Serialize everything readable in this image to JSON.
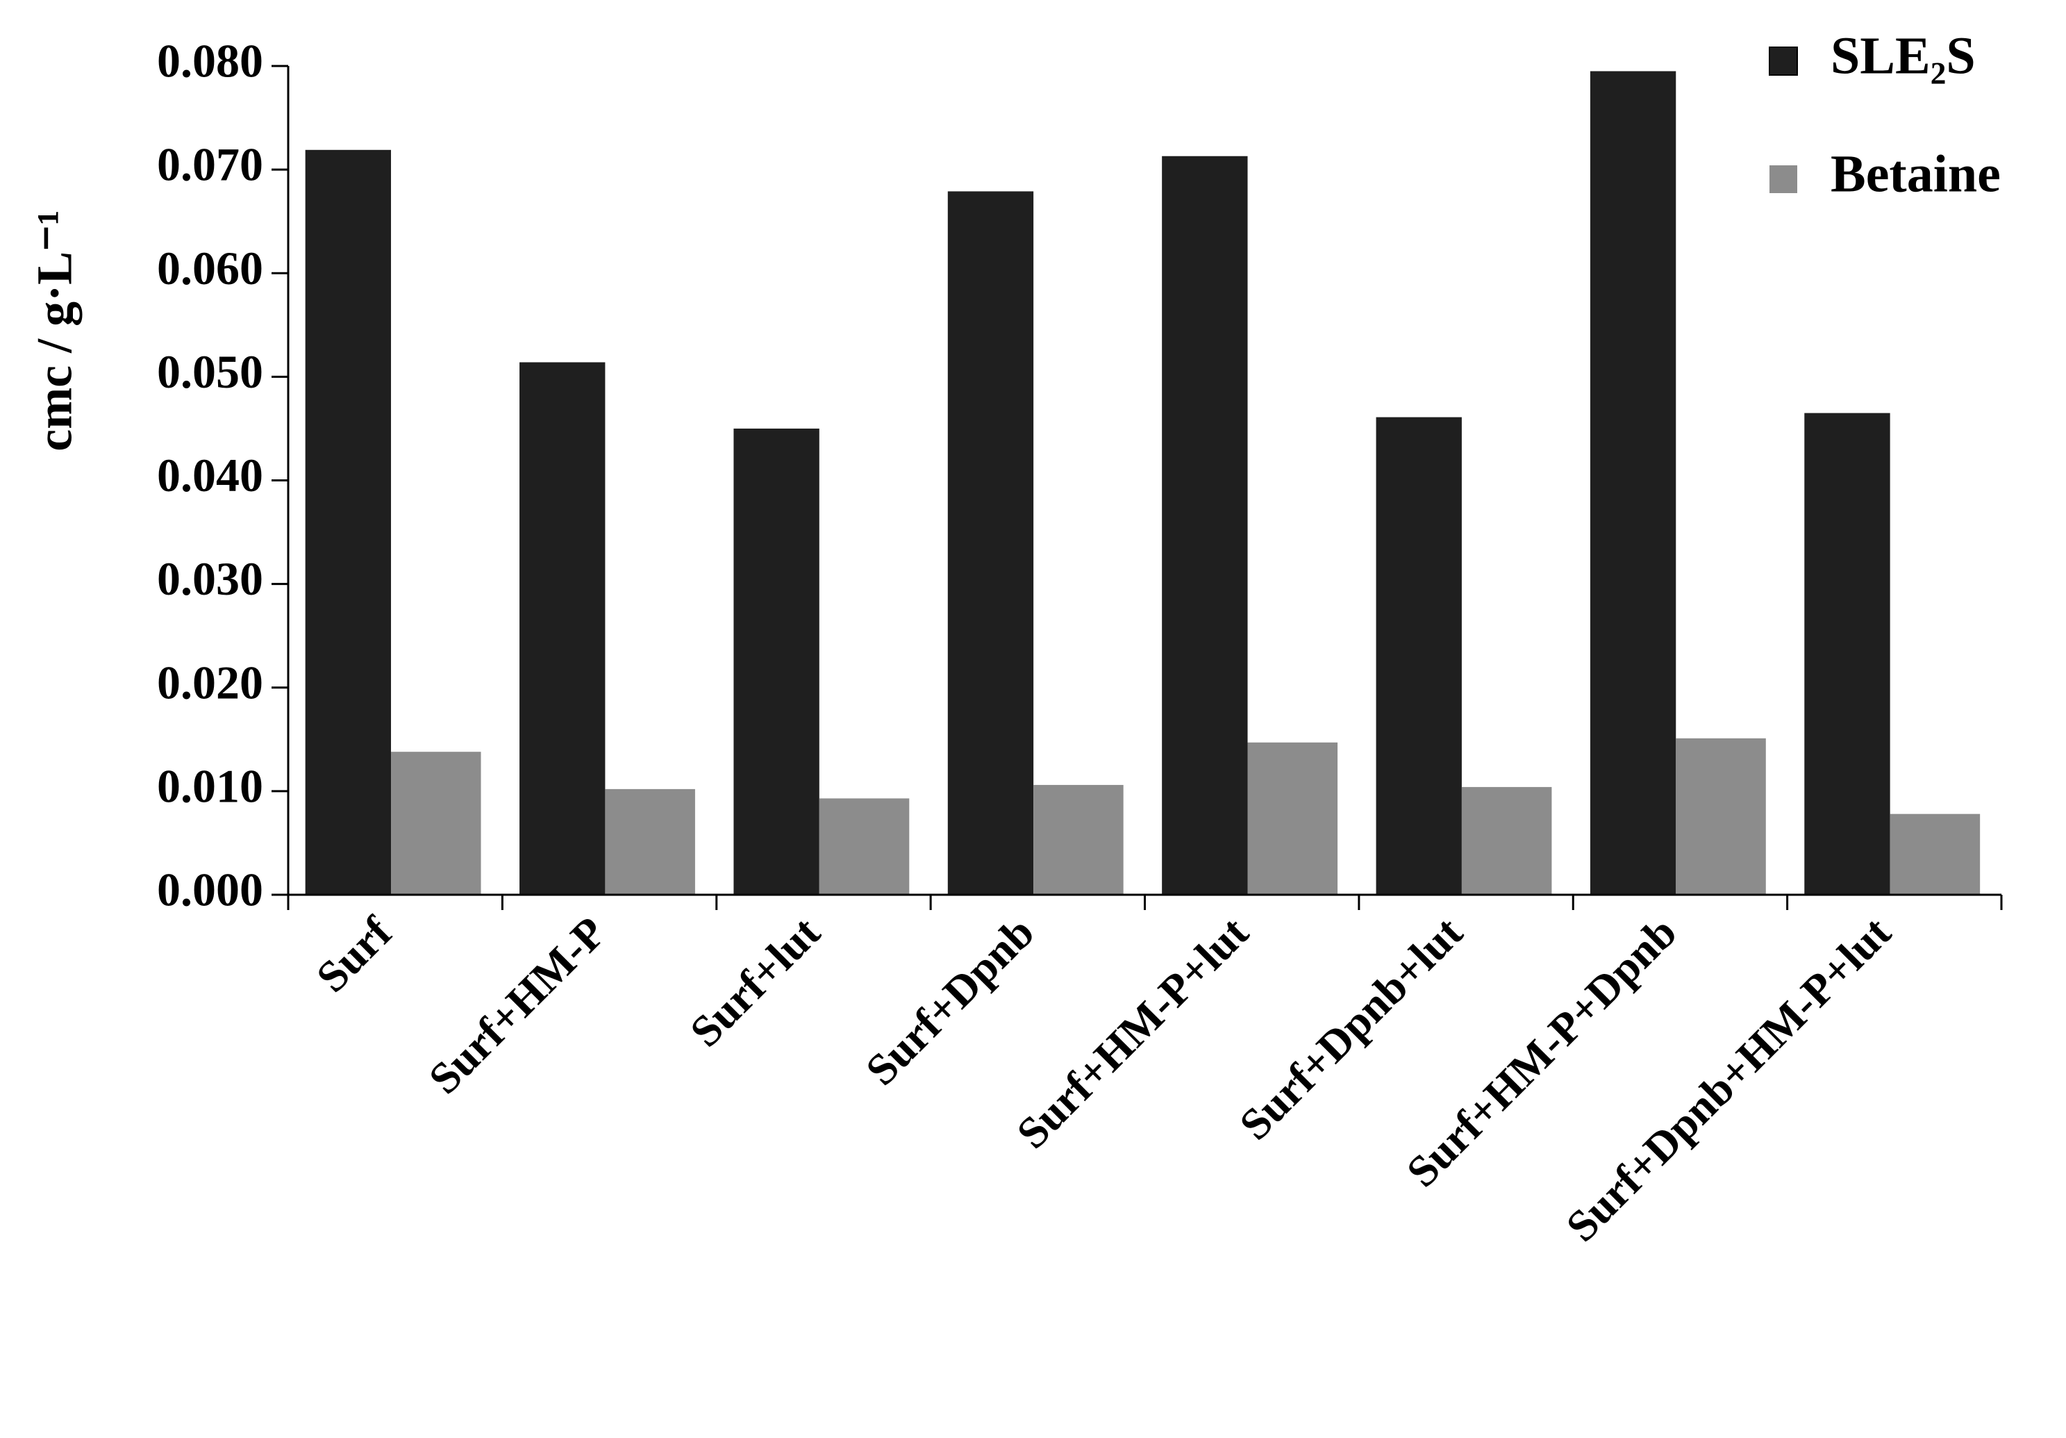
{
  "chart_data": {
    "type": "bar",
    "y_label": "cmc / g·L⁻¹",
    "categories": [
      "Surf",
      "Surf+HM-P",
      "Surf+lut",
      "Surf+Dpnb",
      "Surf+HM-P+lut",
      "Surf+Dpnb+lut",
      "Surf+HM-P+Dpnb",
      "Surf+Dpnb+HM-P+lut"
    ],
    "series": [
      {
        "name": "SLE₂S",
        "color": "#1f1f1f",
        "values": [
          0.0719,
          0.0514,
          0.045,
          0.0679,
          0.0713,
          0.0461,
          0.0795,
          0.0465
        ]
      },
      {
        "name": "Betaine",
        "color": "#8c8c8c",
        "values": [
          0.0138,
          0.0102,
          0.0093,
          0.0106,
          0.0147,
          0.0104,
          0.0151,
          0.0078
        ]
      }
    ],
    "ylim": [
      0,
      0.08
    ],
    "yticks": [
      {
        "value": 0,
        "label": "0.000"
      },
      {
        "value": 0.01,
        "label": "0.010"
      },
      {
        "value": 0.02,
        "label": "0.020"
      },
      {
        "value": 0.03,
        "label": "0.030"
      },
      {
        "value": 0.04,
        "label": "0.040"
      },
      {
        "value": 0.05,
        "label": "0.050"
      },
      {
        "value": 0.06,
        "label": "0.060"
      },
      {
        "value": 0.07,
        "label": "0.070"
      },
      {
        "value": 0.08,
        "label": "0.080"
      }
    ],
    "grid": false,
    "legend": "top-right"
  }
}
